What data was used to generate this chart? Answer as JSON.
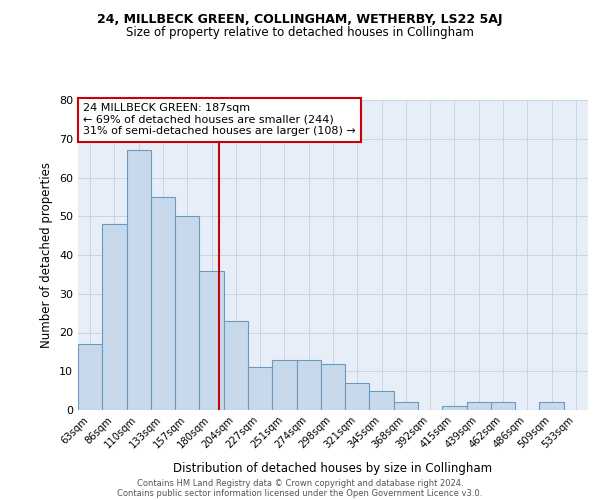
{
  "title1": "24, MILLBECK GREEN, COLLINGHAM, WETHERBY, LS22 5AJ",
  "title2": "Size of property relative to detached houses in Collingham",
  "xlabel": "Distribution of detached houses by size in Collingham",
  "ylabel": "Number of detached properties",
  "categories": [
    "63sqm",
    "86sqm",
    "110sqm",
    "133sqm",
    "157sqm",
    "180sqm",
    "204sqm",
    "227sqm",
    "251sqm",
    "274sqm",
    "298sqm",
    "321sqm",
    "345sqm",
    "368sqm",
    "392sqm",
    "415sqm",
    "439sqm",
    "462sqm",
    "486sqm",
    "509sqm",
    "533sqm"
  ],
  "bar_heights": [
    17,
    48,
    67,
    55,
    50,
    36,
    23,
    11,
    13,
    13,
    12,
    7,
    5,
    2,
    0,
    1,
    2,
    2,
    0,
    2,
    0
  ],
  "bar_color": "#c9d9ec",
  "bar_edge_color": "#6a9bbf",
  "grid_color": "#c8d4e8",
  "bg_color": "#e8eef8",
  "vline_color": "#cc0000",
  "annotation_text": "24 MILLBECK GREEN: 187sqm\n← 69% of detached houses are smaller (244)\n31% of semi-detached houses are larger (108) →",
  "annotation_box_color": "#ffffff",
  "annotation_box_edge": "#cc0000",
  "footer1": "Contains HM Land Registry data © Crown copyright and database right 2024.",
  "footer2": "Contains public sector information licensed under the Open Government Licence v3.0.",
  "ylim": [
    0,
    80
  ],
  "yticks": [
    0,
    10,
    20,
    30,
    40,
    50,
    60,
    70,
    80
  ]
}
